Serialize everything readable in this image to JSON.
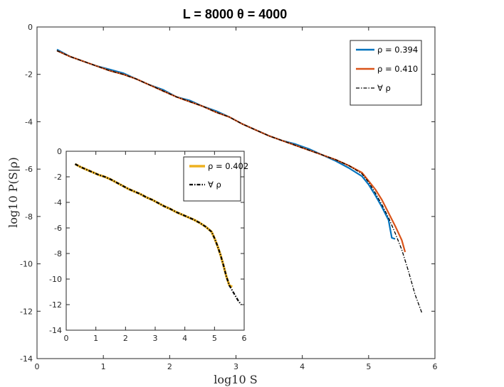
{
  "figure": {
    "title": "L = 8000      θ = 4000"
  },
  "chart_data": [
    {
      "type": "line",
      "xlabel": "log10 S",
      "ylabel": "log10 P(S|ρ)",
      "xlim": [
        0,
        6
      ],
      "ylim": [
        -14,
        0
      ],
      "xticks": [
        "0",
        "1",
        "2",
        "3",
        "4",
        "5",
        "6"
      ],
      "yticks": [
        "0",
        "-2",
        "-4",
        "-6",
        "-8",
        "-10",
        "-12",
        "-14"
      ],
      "legend_position": "top-right",
      "grid": false,
      "series": [
        {
          "name": "ρ = 0.394",
          "color": "#0072BD",
          "style": "solid",
          "x": [
            0.3,
            0.5,
            0.7,
            0.9,
            1.1,
            1.3,
            1.5,
            1.7,
            1.9,
            2.1,
            2.3,
            2.5,
            2.7,
            2.9,
            3.1,
            3.3,
            3.5,
            3.7,
            3.9,
            4.1,
            4.3,
            4.5,
            4.7,
            4.9,
            5.0,
            5.1,
            5.2,
            5.3,
            5.35,
            5.4
          ],
          "y": [
            -0.95,
            -1.25,
            -1.45,
            -1.65,
            -1.8,
            -1.95,
            -2.2,
            -2.45,
            -2.65,
            -2.95,
            -3.1,
            -3.35,
            -3.55,
            -3.8,
            -4.1,
            -4.35,
            -4.6,
            -4.8,
            -4.95,
            -5.15,
            -5.4,
            -5.65,
            -5.95,
            -6.3,
            -6.65,
            -7.1,
            -7.6,
            -8.15,
            -8.9,
            -8.95
          ]
        },
        {
          "name": "ρ = 0.410",
          "color": "#D95319",
          "style": "solid",
          "x": [
            0.3,
            0.5,
            0.7,
            0.9,
            1.1,
            1.3,
            1.5,
            1.7,
            1.9,
            2.1,
            2.3,
            2.5,
            2.7,
            2.9,
            3.1,
            3.3,
            3.5,
            3.7,
            3.9,
            4.1,
            4.3,
            4.5,
            4.7,
            4.9,
            5.0,
            5.1,
            5.2,
            5.3,
            5.4,
            5.5,
            5.55
          ],
          "y": [
            -1.0,
            -1.25,
            -1.45,
            -1.65,
            -1.85,
            -2.0,
            -2.2,
            -2.45,
            -2.7,
            -2.95,
            -3.15,
            -3.35,
            -3.6,
            -3.8,
            -4.1,
            -4.35,
            -4.6,
            -4.8,
            -5.0,
            -5.2,
            -5.4,
            -5.6,
            -5.85,
            -6.15,
            -6.5,
            -6.85,
            -7.3,
            -7.85,
            -8.4,
            -9.0,
            -9.5
          ]
        },
        {
          "name": "∀ ρ",
          "color": "#000000",
          "style": "dashdot",
          "x": [
            0.3,
            0.5,
            0.7,
            0.9,
            1.1,
            1.3,
            1.5,
            1.7,
            1.9,
            2.1,
            2.3,
            2.5,
            2.7,
            2.9,
            3.1,
            3.3,
            3.5,
            3.7,
            3.9,
            4.1,
            4.3,
            4.5,
            4.7,
            4.9,
            5.0,
            5.1,
            5.2,
            5.3,
            5.4,
            5.5,
            5.6,
            5.7,
            5.8
          ],
          "y": [
            -1.0,
            -1.25,
            -1.45,
            -1.65,
            -1.85,
            -2.0,
            -2.2,
            -2.45,
            -2.7,
            -2.95,
            -3.15,
            -3.35,
            -3.6,
            -3.8,
            -4.1,
            -4.35,
            -4.6,
            -4.8,
            -5.0,
            -5.2,
            -5.4,
            -5.6,
            -5.85,
            -6.2,
            -6.55,
            -7.0,
            -7.5,
            -8.05,
            -8.7,
            -9.4,
            -10.3,
            -11.3,
            -12.05
          ]
        }
      ]
    },
    {
      "type": "line",
      "inset": true,
      "xlim": [
        0,
        6
      ],
      "ylim": [
        -14,
        0
      ],
      "xticks": [
        "0",
        "1",
        "2",
        "3",
        "4",
        "5",
        "6"
      ],
      "yticks": [
        "0",
        "-2",
        "-4",
        "-6",
        "-8",
        "-10",
        "-12",
        "-14"
      ],
      "legend_position": "top-right",
      "series": [
        {
          "name": "ρ = 0.402",
          "color": "#EDB120",
          "style": "solid",
          "x": [
            0.3,
            0.5,
            0.7,
            0.9,
            1.1,
            1.3,
            1.5,
            1.7,
            1.9,
            2.1,
            2.3,
            2.5,
            2.7,
            2.9,
            3.1,
            3.3,
            3.5,
            3.7,
            3.9,
            4.1,
            4.3,
            4.5,
            4.7,
            4.9,
            5.0,
            5.1,
            5.2,
            5.3,
            5.4,
            5.5,
            5.6
          ],
          "y": [
            -1.0,
            -1.25,
            -1.45,
            -1.65,
            -1.85,
            -2.0,
            -2.2,
            -2.45,
            -2.7,
            -2.95,
            -3.15,
            -3.35,
            -3.6,
            -3.8,
            -4.05,
            -4.3,
            -4.5,
            -4.75,
            -4.95,
            -5.15,
            -5.35,
            -5.6,
            -5.9,
            -6.3,
            -6.8,
            -7.4,
            -8.1,
            -8.9,
            -9.8,
            -10.5,
            -10.6
          ]
        },
        {
          "name": "∀ ρ",
          "color": "#000000",
          "style": "dashdot",
          "x": [
            0.3,
            0.5,
            0.7,
            0.9,
            1.1,
            1.3,
            1.5,
            1.7,
            1.9,
            2.1,
            2.3,
            2.5,
            2.7,
            2.9,
            3.1,
            3.3,
            3.5,
            3.7,
            3.9,
            4.1,
            4.3,
            4.5,
            4.7,
            4.9,
            5.0,
            5.1,
            5.2,
            5.3,
            5.4,
            5.5,
            5.6,
            5.7,
            5.8,
            5.9
          ],
          "y": [
            -1.0,
            -1.25,
            -1.45,
            -1.65,
            -1.85,
            -2.0,
            -2.2,
            -2.45,
            -2.7,
            -2.95,
            -3.15,
            -3.35,
            -3.6,
            -3.8,
            -4.05,
            -4.3,
            -4.5,
            -4.75,
            -4.95,
            -5.15,
            -5.35,
            -5.6,
            -5.9,
            -6.3,
            -6.8,
            -7.4,
            -8.1,
            -8.9,
            -9.8,
            -10.5,
            -10.9,
            -11.3,
            -11.7,
            -12.0
          ]
        }
      ]
    }
  ]
}
